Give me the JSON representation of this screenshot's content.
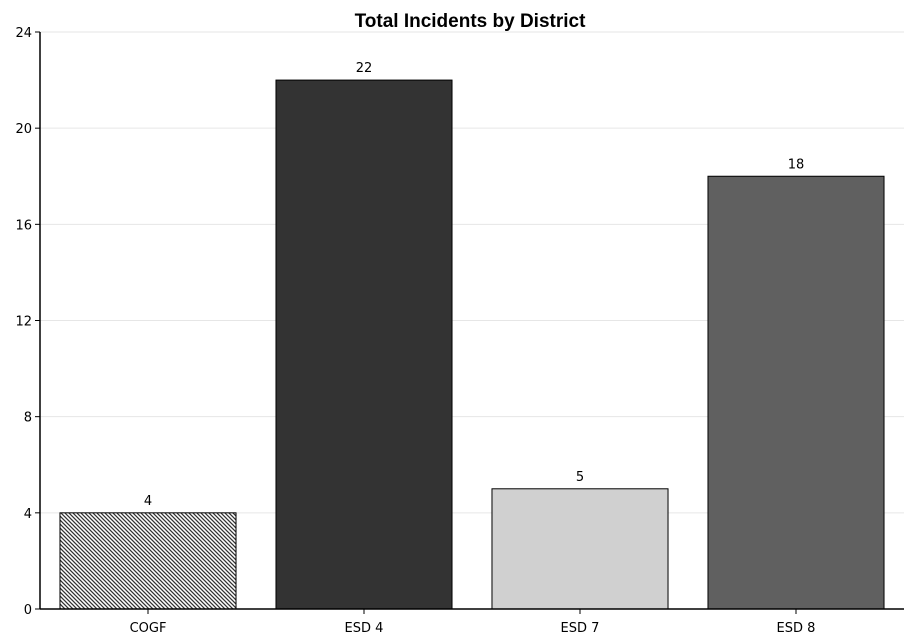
{
  "chart_data": {
    "type": "bar",
    "title": "Total Incidents by District",
    "xlabel": "",
    "ylabel": "",
    "categories": [
      "COGF",
      "ESD 4",
      "ESD 7",
      "ESD 8"
    ],
    "values": [
      4,
      22,
      5,
      18
    ],
    "data_labels": [
      "4",
      "22",
      "5",
      "18"
    ],
    "bar_colors": [
      "hatched",
      "#333333",
      "#d0d0d0",
      "#606060"
    ],
    "ylim": [
      0,
      24
    ],
    "yticks": [
      0,
      4,
      8,
      12,
      16,
      20,
      24
    ],
    "ytick_labels": [
      "0",
      "4",
      "8",
      "12",
      "16",
      "20",
      "24"
    ],
    "grid": true,
    "legend": "none"
  }
}
